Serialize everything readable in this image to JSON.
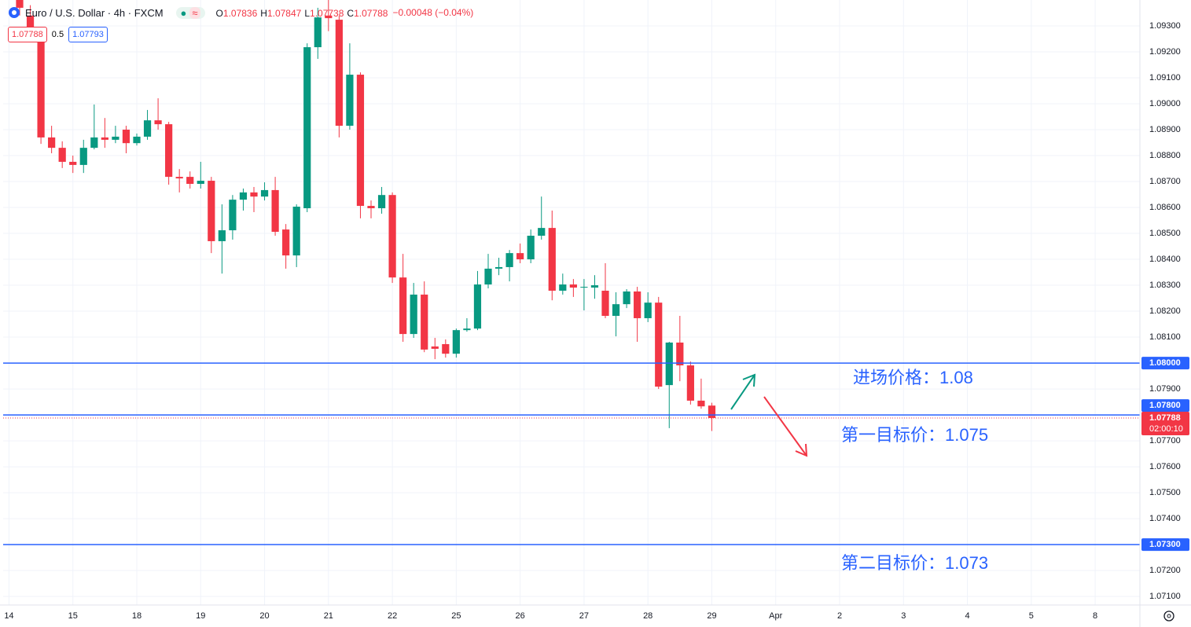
{
  "header": {
    "title": "Euro / U.S. Dollar · 4h · FXCM",
    "ohlc": [
      {
        "key": "O",
        "value": "1.07836"
      },
      {
        "key": "H",
        "value": "1.07847"
      },
      {
        "key": "L",
        "value": "1.07738"
      },
      {
        "key": "C",
        "value": "1.07788"
      }
    ],
    "change": "−0.00048 (−0.04%)",
    "sell": "1.07788",
    "spread": "0.5",
    "buy": "1.07793"
  },
  "chart_data": {
    "type": "candlestick",
    "up_color": "#089981",
    "down_color": "#f23645",
    "grid": true,
    "open": [
      1.0941,
      1.0934,
      1.09255,
      1.0887,
      1.0883,
      1.08776,
      1.08764,
      1.0883,
      1.0887,
      1.08861,
      1.089,
      1.08848,
      1.08873,
      1.08936,
      1.08921,
      1.08718,
      1.08718,
      1.08691,
      1.08703,
      1.0847,
      1.08512,
      1.0863,
      1.08658,
      1.08642,
      1.08667,
      1.08515,
      1.08415,
      1.08597,
      1.09218,
      1.0934,
      1.09324,
      1.08915,
      1.09112,
      1.08606,
      1.08597,
      1.08648,
      1.0833,
      1.08112,
      1.08264,
      1.08064,
      1.08073,
      1.08036,
      1.08127,
      1.08133,
      1.08303,
      1.08364,
      1.0837,
      1.08424,
      1.084,
      1.08491,
      1.08521,
      1.08279,
      1.08303,
      1.08291,
      1.08291,
      1.08279,
      1.08182,
      1.08227,
      1.08276,
      1.08173,
      1.08233,
      1.07915,
      1.08079,
      1.07991,
      1.07855,
      1.07836
    ],
    "high": [
      1.0945,
      1.0938,
      1.09294,
      1.08915,
      1.08855,
      1.088,
      1.08861,
      1.08997,
      1.08945,
      1.08915,
      1.08915,
      1.08885,
      1.08976,
      1.09021,
      1.0893,
      1.08748,
      1.08739,
      1.08776,
      1.08718,
      1.08612,
      1.08648,
      1.08673,
      1.08679,
      1.08697,
      1.08718,
      1.08536,
      1.08612,
      1.09233,
      1.0937,
      1.094,
      1.09339,
      1.09233,
      1.09121,
      1.08627,
      1.08679,
      1.08658,
      1.08421,
      1.08309,
      1.08315,
      1.08097,
      1.08091,
      1.08133,
      1.08173,
      1.08355,
      1.08421,
      1.08406,
      1.08436,
      1.08461,
      1.08515,
      1.08642,
      1.08588,
      1.08345,
      1.08324,
      1.08324,
      1.08339,
      1.08385,
      1.08273,
      1.08285,
      1.08294,
      1.08273,
      1.08255,
      1.08082,
      1.08182,
      1.08006,
      1.0794,
      1.07847
    ],
    "low": [
      1.0934,
      1.0925,
      1.08845,
      1.08809,
      1.08752,
      1.08733,
      1.08733,
      1.08824,
      1.0883,
      1.08848,
      1.08809,
      1.08839,
      1.08861,
      1.089,
      1.08688,
      1.08658,
      1.08673,
      1.08673,
      1.08424,
      1.08345,
      1.08476,
      1.08588,
      1.08582,
      1.08627,
      1.08491,
      1.08364,
      1.0837,
      1.08582,
      1.09173,
      1.0928,
      1.0887,
      1.089,
      1.08558,
      1.08558,
      1.08576,
      1.08309,
      1.08082,
      1.08097,
      1.08042,
      1.08015,
      1.08021,
      1.08021,
      1.08121,
      1.08127,
      1.08288,
      1.08339,
      1.08315,
      1.08385,
      1.08385,
      1.08476,
      1.08242,
      1.08264,
      1.08255,
      1.08203,
      1.08248,
      1.08173,
      1.08103,
      1.08212,
      1.08082,
      1.08158,
      1.079,
      1.07749,
      1.0793,
      1.0784,
      1.07824,
      1.07738
    ],
    "close": [
      1.0937,
      1.0926,
      1.0887,
      1.0883,
      1.08776,
      1.08764,
      1.0883,
      1.0887,
      1.08861,
      1.08873,
      1.08848,
      1.08873,
      1.08936,
      1.08921,
      1.08718,
      1.08712,
      1.08691,
      1.08703,
      1.0847,
      1.08512,
      1.0863,
      1.08658,
      1.08642,
      1.08667,
      1.08506,
      1.08415,
      1.08603,
      1.09218,
      1.09333,
      1.0933,
      1.08915,
      1.09112,
      1.08606,
      1.08597,
      1.08648,
      1.0833,
      1.08112,
      1.08264,
      1.08052,
      1.08055,
      1.08036,
      1.08127,
      1.08133,
      1.08303,
      1.08364,
      1.0837,
      1.08424,
      1.084,
      1.08491,
      1.08521,
      1.08279,
      1.08303,
      1.08291,
      1.08294,
      1.083,
      1.08182,
      1.08227,
      1.08276,
      1.08173,
      1.08233,
      1.07909,
      1.08079,
      1.07991,
      1.07855,
      1.07833,
      1.07788
    ],
    "xlim": [
      -1.55,
      105.2
    ],
    "xticks": [
      {
        "value": -1,
        "label": "14"
      },
      {
        "value": 5,
        "label": "15"
      },
      {
        "value": 11,
        "label": "18"
      },
      {
        "value": 17,
        "label": "19"
      },
      {
        "value": 23,
        "label": "20"
      },
      {
        "value": 29,
        "label": "21"
      },
      {
        "value": 35,
        "label": "22"
      },
      {
        "value": 41,
        "label": "25"
      },
      {
        "value": 47,
        "label": "26"
      },
      {
        "value": 53,
        "label": "27"
      },
      {
        "value": 59,
        "label": "28"
      },
      {
        "value": 65,
        "label": "29"
      },
      {
        "value": 71,
        "label": "Apr"
      },
      {
        "value": 77,
        "label": "2"
      },
      {
        "value": 83,
        "label": "3"
      },
      {
        "value": 89,
        "label": "4"
      },
      {
        "value": 95,
        "label": "5"
      },
      {
        "value": 101,
        "label": "8"
      }
    ],
    "ylim": [
      1.07067,
      1.094
    ],
    "yticks": [
      {
        "value": 1.093,
        "label": "1.09300"
      },
      {
        "value": 1.092,
        "label": "1.09200"
      },
      {
        "value": 1.091,
        "label": "1.09100"
      },
      {
        "value": 1.09,
        "label": "1.09000"
      },
      {
        "value": 1.089,
        "label": "1.08900"
      },
      {
        "value": 1.088,
        "label": "1.08800"
      },
      {
        "value": 1.087,
        "label": "1.08700"
      },
      {
        "value": 1.086,
        "label": "1.08600"
      },
      {
        "value": 1.085,
        "label": "1.08500"
      },
      {
        "value": 1.084,
        "label": "1.08400"
      },
      {
        "value": 1.083,
        "label": "1.08300"
      },
      {
        "value": 1.082,
        "label": "1.08200"
      },
      {
        "value": 1.081,
        "label": "1.08100"
      },
      {
        "value": 1.079,
        "label": "1.07900"
      },
      {
        "value": 1.077,
        "label": "1.07700"
      },
      {
        "value": 1.076,
        "label": "1.07600"
      },
      {
        "value": 1.075,
        "label": "1.07500"
      },
      {
        "value": 1.074,
        "label": "1.07400"
      },
      {
        "value": 1.072,
        "label": "1.07200"
      },
      {
        "value": 1.071,
        "label": "1.07100"
      }
    ],
    "hlines": [
      {
        "value": 1.08,
        "label": "1.08000"
      },
      {
        "value": 1.078,
        "label": "1.07800"
      },
      {
        "value": 1.073,
        "label": "1.07300"
      }
    ],
    "hline_color": "#2962ff",
    "last_price": 1.07788,
    "countdown": "02:00:10",
    "annotations": [
      "进场价格：1.08",
      "第一目标价：1.075",
      "第二目标价：1.073"
    ]
  }
}
